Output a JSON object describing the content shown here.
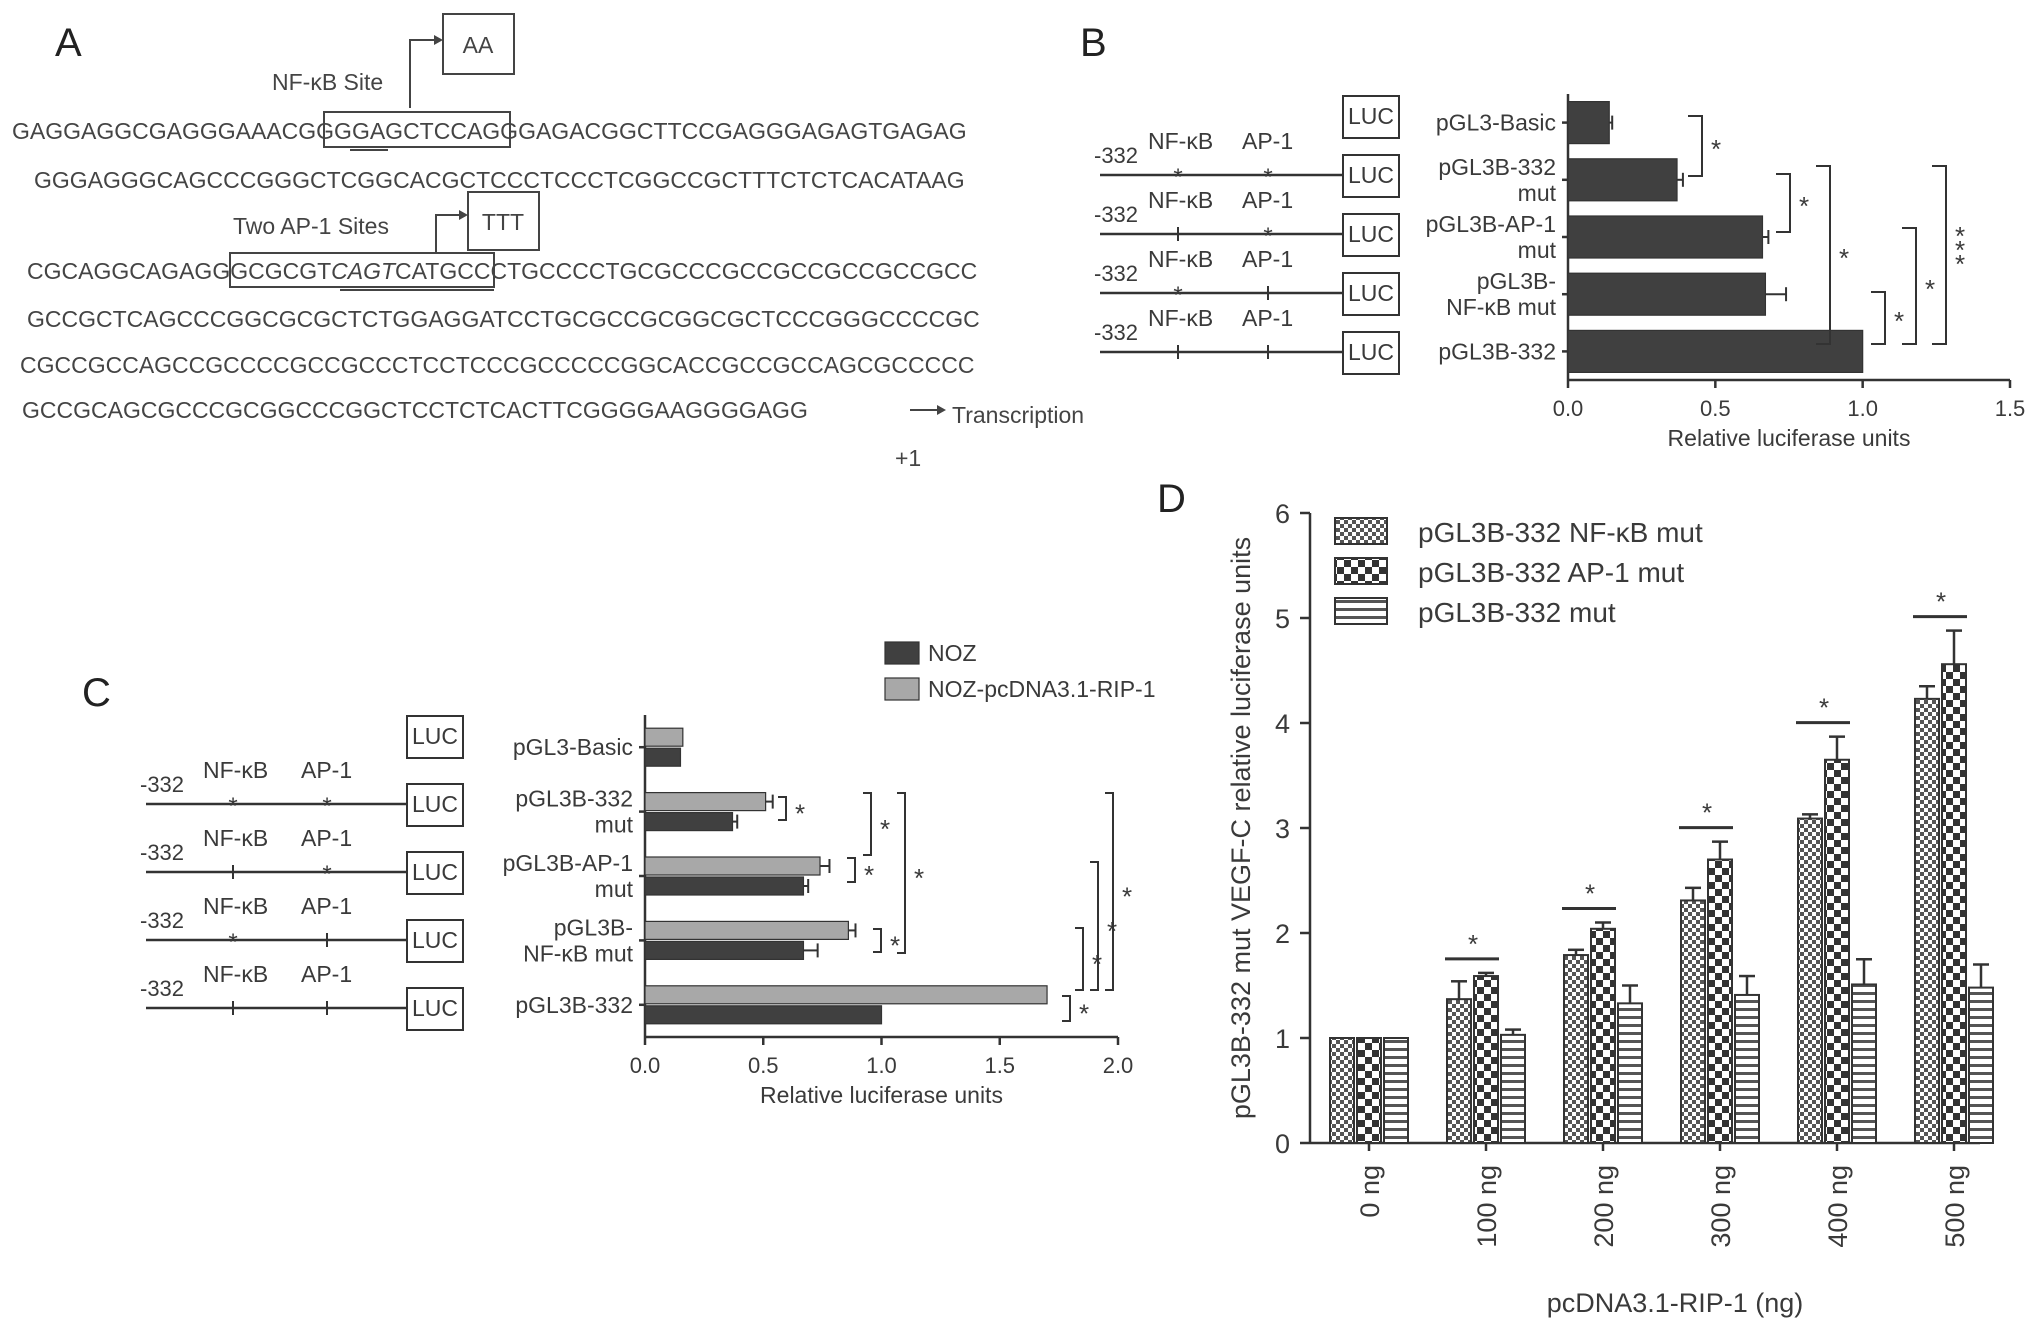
{
  "panels": {
    "A": "A",
    "B": "B",
    "C": "C",
    "D": "D"
  },
  "panel_a": {
    "site_nfkb_label": "NF-κB Site",
    "site_ap1_label": "Two AP-1 Sites",
    "mutation_nfkb": "AA",
    "mutation_ap1": "TTT",
    "transcription_label": "Transcription",
    "plus_one": "+1",
    "seq1_pre": "GAGGAGGCGAGGGAAAC",
    "seq1_box": "GGGGAGCTCC",
    "seq1_post": "AGGGAGACGGCTTCCGAGGGAGAGTGAGAG",
    "seq2": "GGGAGGGCAGCCCGGGCTCGGCACGCTCCCTCCCTCGGCCGCTTTCTCTCACATAAG",
    "seq3_pre": "CGCAGGCAGAG",
    "seq3_box_a": "GGCGCGT",
    "seq3_box_b": "CAGT",
    "seq3_box_c": "CATG",
    "seq3_post": "CCCTGCCCCTGCGCCCGCCGCCGCCGCCGCC",
    "seq4": "GCCGCTCAGCCCGGCGCGCTCTGGAGGATCCTGCGCCGCGGCGCTCCCGGGCCCCGC",
    "seq5": "CGCCGCCAGCCGCCCCGCCGCCCTCCTCCCGCCCCCGGCACCGCCGCCAGCGCCCCC",
    "seq6": "GCCGCAGCGCCCGCGGCCCGGCTCCTCTCACTTCGGGGAAGGGGAGG"
  },
  "construct_labels": {
    "pos": "-332",
    "nfkb": "NF-κB",
    "ap1": "AP-1",
    "luc": "LUC",
    "mark": "*"
  },
  "colors": {
    "dark": "#404040",
    "light": "#a8a8a8",
    "axis": "#333333"
  },
  "chart_data": [
    {
      "panel": "B",
      "type": "bar",
      "orientation": "horizontal",
      "categories": [
        [
          "pGL3-Basic"
        ],
        [
          "pGL3B-332",
          "mut"
        ],
        [
          "pGL3B-AP-1",
          "mut"
        ],
        [
          "pGL3B-",
          "NF-κB mut"
        ],
        [
          "pGL3B-332"
        ]
      ],
      "values": [
        0.14,
        0.37,
        0.66,
        0.67,
        1.0
      ],
      "errors": [
        0.01,
        0.02,
        0.02,
        0.07,
        0.0
      ],
      "xlabel": "Relative luciferase units",
      "xlim": [
        0,
        1.5
      ],
      "xticks": [
        "0.0",
        "0.5",
        "1.0",
        "1.5"
      ],
      "significance": [
        "*",
        "*",
        "*",
        "*",
        "*",
        "***"
      ]
    },
    {
      "panel": "C",
      "type": "bar",
      "orientation": "horizontal",
      "categories": [
        [
          "pGL3-Basic"
        ],
        [
          "pGL3B-332",
          "mut"
        ],
        [
          "pGL3B-AP-1",
          "mut"
        ],
        [
          "pGL3B-",
          "NF-κB mut"
        ],
        [
          "pGL3B-332"
        ]
      ],
      "series": [
        {
          "name": "NOZ",
          "values": [
            0.15,
            0.37,
            0.67,
            0.67,
            1.0
          ],
          "errors": [
            0.0,
            0.02,
            0.02,
            0.06,
            0.0
          ]
        },
        {
          "name": "NOZ-pcDNA3.1-RIP-1",
          "values": [
            0.16,
            0.51,
            0.74,
            0.86,
            1.7
          ],
          "errors": [
            0.0,
            0.03,
            0.04,
            0.03,
            0.0
          ]
        }
      ],
      "xlabel": "Relative luciferase units",
      "xlim": [
        0,
        2.0
      ],
      "xticks": [
        "0.0",
        "0.5",
        "1.0",
        "1.5",
        "2.0"
      ],
      "legend": "top-right",
      "significance": [
        "*",
        "*",
        "*",
        "*",
        "*",
        "*",
        "*",
        "*",
        "*"
      ]
    },
    {
      "panel": "D",
      "type": "bar",
      "categories": [
        "0 ng",
        "100 ng",
        "200 ng",
        "300 ng",
        "400 ng",
        "500 ng"
      ],
      "series": [
        {
          "name": "pGL3B-332 NF-κB mut",
          "values": [
            1.0,
            1.37,
            1.79,
            2.31,
            3.09,
            4.23
          ],
          "errors": [
            0,
            0.17,
            0.05,
            0.12,
            0.04,
            0.12
          ]
        },
        {
          "name": "pGL3B-332 AP-1 mut",
          "values": [
            1.0,
            1.59,
            2.04,
            2.7,
            3.65,
            4.56
          ],
          "errors": [
            0,
            0.03,
            0.06,
            0.17,
            0.22,
            0.32
          ]
        },
        {
          "name": "pGL3B-332 mut",
          "values": [
            1.0,
            1.03,
            1.33,
            1.41,
            1.51,
            1.48
          ],
          "errors": [
            0,
            0.05,
            0.17,
            0.18,
            0.24,
            0.22
          ]
        }
      ],
      "ylabel": "pGL3B-332 mut VEGF-C relative luciferase units",
      "xlabel": "pcDNA3.1-RIP-1 (ng)",
      "ylim": [
        0,
        6
      ],
      "yticks": [
        "0",
        "1",
        "2",
        "3",
        "4",
        "5",
        "6"
      ],
      "legend": "top-left",
      "significance": [
        "*",
        "*",
        "*",
        "*",
        "*"
      ]
    }
  ]
}
